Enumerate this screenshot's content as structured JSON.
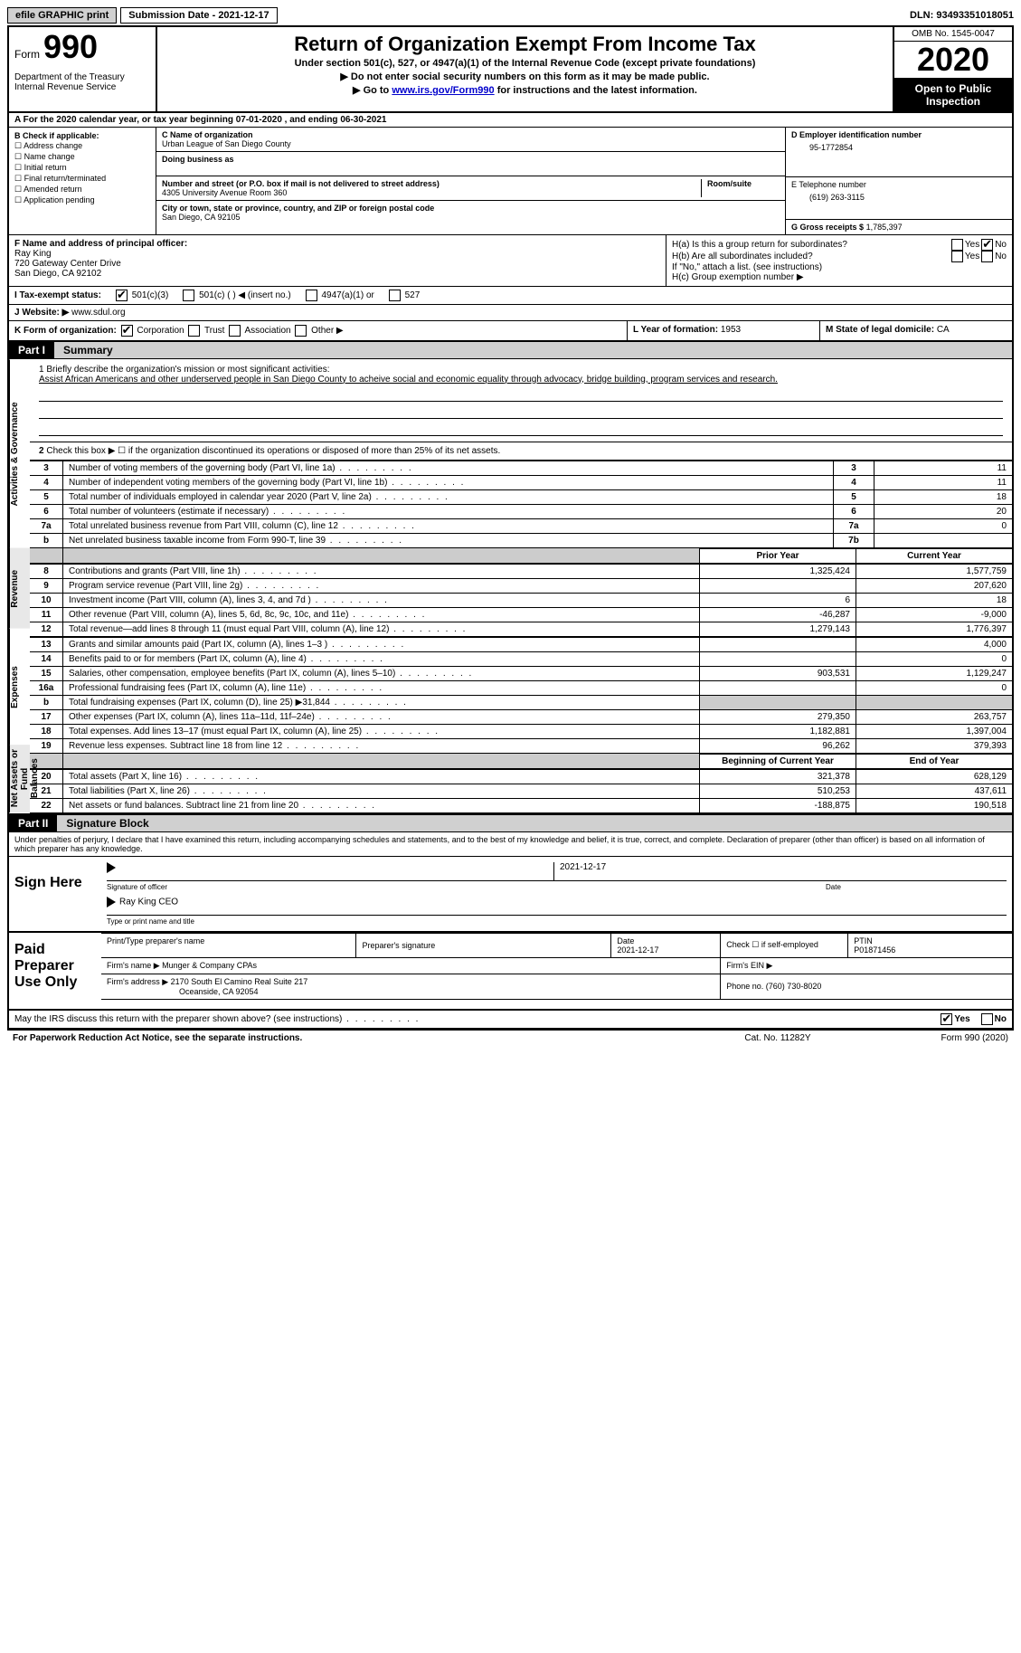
{
  "topbar": {
    "efile": "efile GRAPHIC print",
    "submission": "Submission Date - 2021-12-17",
    "dln": "DLN: 93493351018051"
  },
  "header": {
    "form_word": "Form",
    "form_num": "990",
    "dept": "Department of the Treasury Internal Revenue Service",
    "title": "Return of Organization Exempt From Income Tax",
    "sub1": "Under section 501(c), 527, or 4947(a)(1) of the Internal Revenue Code (except private foundations)",
    "sub2": "▶ Do not enter social security numbers on this form as it may be made public.",
    "sub3_pre": "▶ Go to ",
    "sub3_link": "www.irs.gov/Form990",
    "sub3_post": " for instructions and the latest information.",
    "omb": "OMB No. 1545-0047",
    "year": "2020",
    "open": "Open to Public Inspection"
  },
  "rowA": "A For the 2020 calendar year, or tax year beginning 07-01-2020    , and ending 06-30-2021",
  "colB": {
    "title": "B Check if applicable:",
    "i1": "Address change",
    "i2": "Name change",
    "i3": "Initial return",
    "i4": "Final return/terminated",
    "i5": "Amended return",
    "i6": "Application pending"
  },
  "colC": {
    "name_lbl": "C Name of organization",
    "name": "Urban League of San Diego County",
    "dba_lbl": "Doing business as",
    "dba": "",
    "addr_lbl": "Number and street (or P.O. box if mail is not delivered to street address)",
    "addr": "4305 University Avenue Room 360",
    "room_lbl": "Room/suite",
    "city_lbl": "City or town, state or province, country, and ZIP or foreign postal code",
    "city": "San Diego, CA  92105"
  },
  "colD": {
    "ein_lbl": "D Employer identification number",
    "ein": "95-1772854",
    "tel_lbl": "E Telephone number",
    "tel": "(619) 263-3115",
    "gross_lbl": "G Gross receipts $",
    "gross": "1,785,397"
  },
  "colF": {
    "lbl": "F Name and address of principal officer:",
    "name": "Ray King",
    "addr1": "720 Gateway Center Drive",
    "addr2": "San Diego, CA  92102"
  },
  "colH": {
    "ha": "H(a)  Is this a group return for subordinates?",
    "hb": "H(b)  Are all subordinates included?",
    "hb_note": "If \"No,\" attach a list. (see instructions)",
    "hc": "H(c)  Group exemption number ▶",
    "yes": "Yes",
    "no": "No"
  },
  "rowI": {
    "lbl": "I   Tax-exempt status:",
    "o1": "501(c)(3)",
    "o2": "501(c) (   ) ◀ (insert no.)",
    "o3": "4947(a)(1) or",
    "o4": "527"
  },
  "rowJ": {
    "lbl": "J   Website: ▶",
    "val": "www.sdul.org"
  },
  "rowK": {
    "lbl": "K Form of organization:",
    "o1": "Corporation",
    "o2": "Trust",
    "o3": "Association",
    "o4": "Other ▶",
    "l_lbl": "L Year of formation:",
    "l_val": "1953",
    "m_lbl": "M State of legal domicile:",
    "m_val": "CA"
  },
  "part1": {
    "tag": "Part I",
    "name": "Summary",
    "vtab1": "Activities & Governance",
    "vtab2": "Revenue",
    "vtab3": "Expenses",
    "vtab4": "Net Assets or Fund Balances",
    "q1_lbl": "1 Briefly describe the organization's mission or most significant activities:",
    "q1_txt": "Assist African Americans and other underserved people in San Diego County to acheive social and economic equality through advocacy, bridge building, program services and research.",
    "q2": "Check this box ▶ ☐  if the organization discontinued its operations or disposed of more than 25% of its net assets.",
    "lines_gov": [
      {
        "n": "3",
        "d": "Number of voting members of the governing body (Part VI, line 1a)",
        "b": "3",
        "v": "11"
      },
      {
        "n": "4",
        "d": "Number of independent voting members of the governing body (Part VI, line 1b)",
        "b": "4",
        "v": "11"
      },
      {
        "n": "5",
        "d": "Total number of individuals employed in calendar year 2020 (Part V, line 2a)",
        "b": "5",
        "v": "18"
      },
      {
        "n": "6",
        "d": "Total number of volunteers (estimate if necessary)",
        "b": "6",
        "v": "20"
      },
      {
        "n": "7a",
        "d": "Total unrelated business revenue from Part VIII, column (C), line 12",
        "b": "7a",
        "v": "0"
      },
      {
        "n": "b",
        "d": "Net unrelated business taxable income from Form 990-T, line 39",
        "b": "7b",
        "v": ""
      }
    ],
    "col_prior": "Prior Year",
    "col_curr": "Current Year",
    "lines_rev": [
      {
        "n": "8",
        "d": "Contributions and grants (Part VIII, line 1h)",
        "p": "1,325,424",
        "c": "1,577,759"
      },
      {
        "n": "9",
        "d": "Program service revenue (Part VIII, line 2g)",
        "p": "",
        "c": "207,620"
      },
      {
        "n": "10",
        "d": "Investment income (Part VIII, column (A), lines 3, 4, and 7d )",
        "p": "6",
        "c": "18"
      },
      {
        "n": "11",
        "d": "Other revenue (Part VIII, column (A), lines 5, 6d, 8c, 9c, 10c, and 11e)",
        "p": "-46,287",
        "c": "-9,000"
      },
      {
        "n": "12",
        "d": "Total revenue—add lines 8 through 11 (must equal Part VIII, column (A), line 12)",
        "p": "1,279,143",
        "c": "1,776,397"
      }
    ],
    "lines_exp": [
      {
        "n": "13",
        "d": "Grants and similar amounts paid (Part IX, column (A), lines 1–3 )",
        "p": "",
        "c": "4,000"
      },
      {
        "n": "14",
        "d": "Benefits paid to or for members (Part IX, column (A), line 4)",
        "p": "",
        "c": "0"
      },
      {
        "n": "15",
        "d": "Salaries, other compensation, employee benefits (Part IX, column (A), lines 5–10)",
        "p": "903,531",
        "c": "1,129,247"
      },
      {
        "n": "16a",
        "d": "Professional fundraising fees (Part IX, column (A), line 11e)",
        "p": "",
        "c": "0"
      },
      {
        "n": "b",
        "d": "Total fundraising expenses (Part IX, column (D), line 25) ▶31,844",
        "p": "shade",
        "c": "shade"
      },
      {
        "n": "17",
        "d": "Other expenses (Part IX, column (A), lines 11a–11d, 11f–24e)",
        "p": "279,350",
        "c": "263,757"
      },
      {
        "n": "18",
        "d": "Total expenses. Add lines 13–17 (must equal Part IX, column (A), line 25)",
        "p": "1,182,881",
        "c": "1,397,004"
      },
      {
        "n": "19",
        "d": "Revenue less expenses. Subtract line 18 from line 12",
        "p": "96,262",
        "c": "379,393"
      }
    ],
    "col_beg": "Beginning of Current Year",
    "col_end": "End of Year",
    "lines_net": [
      {
        "n": "20",
        "d": "Total assets (Part X, line 16)",
        "p": "321,378",
        "c": "628,129"
      },
      {
        "n": "21",
        "d": "Total liabilities (Part X, line 26)",
        "p": "510,253",
        "c": "437,611"
      },
      {
        "n": "22",
        "d": "Net assets or fund balances. Subtract line 21 from line 20",
        "p": "-188,875",
        "c": "190,518"
      }
    ]
  },
  "part2": {
    "tag": "Part II",
    "name": "Signature Block",
    "decl": "Under penalties of perjury, I declare that I have examined this return, including accompanying schedules and statements, and to the best of my knowledge and belief, it is true, correct, and complete. Declaration of preparer (other than officer) is based on all information of which preparer has any knowledge."
  },
  "sign": {
    "title": "Sign Here",
    "sig_lbl": "Signature of officer",
    "date_lbl": "Date",
    "date": "2021-12-17",
    "name": "Ray King  CEO",
    "name_lbl": "Type or print name and title"
  },
  "prep": {
    "title": "Paid Preparer Use Only",
    "h1": "Print/Type preparer's name",
    "h2": "Preparer's signature",
    "h3": "Date",
    "h3v": "2021-12-17",
    "h4": "Check ☐ if self-employed",
    "h5": "PTIN",
    "h5v": "P01871456",
    "firm_lbl": "Firm's name    ▶",
    "firm": "Munger & Company CPAs",
    "ein_lbl": "Firm's EIN ▶",
    "addr_lbl": "Firm's address ▶",
    "addr1": "2170 South El Camino Real Suite 217",
    "addr2": "Oceanside, CA  92054",
    "phone_lbl": "Phone no.",
    "phone": "(760) 730-8020"
  },
  "discuss": {
    "txt": "May the IRS discuss this return with the preparer shown above? (see instructions)",
    "yes": "Yes",
    "no": "No"
  },
  "footer": {
    "f1": "For Paperwork Reduction Act Notice, see the separate instructions.",
    "f2": "Cat. No. 11282Y",
    "f3": "Form 990 (2020)"
  }
}
